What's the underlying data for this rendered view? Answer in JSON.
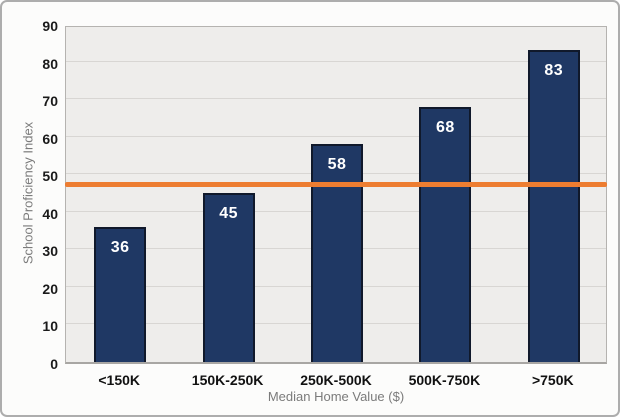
{
  "chart_data": {
    "type": "bar",
    "title": "",
    "categories": [
      "<150K",
      "150K-250K",
      "250K-500K",
      "500K-750K",
      ">750K"
    ],
    "values": [
      36,
      45,
      58,
      68,
      83
    ],
    "data_labels": [
      "36",
      "45",
      "58",
      "68",
      "83"
    ],
    "xlabel": "Median Home Value ($)",
    "ylabel": "School Proficiency Index",
    "ylim": [
      0,
      90
    ],
    "yticks": [
      0,
      10,
      20,
      30,
      40,
      50,
      60,
      70,
      80,
      90
    ],
    "grid": "horizontal",
    "legend": "none",
    "reference_line": {
      "value": 48,
      "color": "#ED7D31"
    },
    "colors": {
      "bar_fill": "#1F3864",
      "bar_border": "#10192B",
      "data_label": "#FFFFFF",
      "plot_background": "#EEEDEB",
      "gridline": "#D8D6D3",
      "reference_line": "#ED7D31",
      "tick_label": "#1A1A1A",
      "axis_title": "#7B7B7B",
      "frame_border": "#ADADAD",
      "page_background": "#FCFCFB"
    }
  }
}
